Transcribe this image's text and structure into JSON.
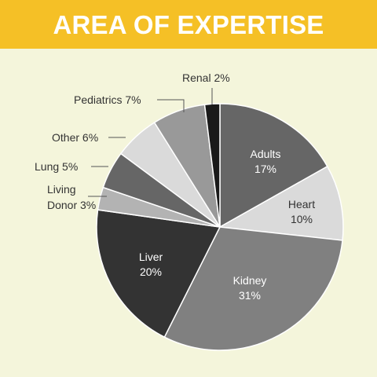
{
  "header": {
    "title": "AREA OF EXPERTISE"
  },
  "colors": {
    "background": "#f4f5db",
    "title_bar": "#f5c026",
    "title_text": "#ffffff"
  },
  "chart_data": {
    "type": "pie",
    "title": "AREA OF EXPERTISE",
    "start_angle_deg": 0,
    "direction": "clockwise",
    "slices": [
      {
        "category": "Adults",
        "value": 17,
        "value_label": "17%",
        "color": "#666666",
        "label_color": "#ffffff",
        "label_position": "inside"
      },
      {
        "category": "Heart",
        "value": 10,
        "value_label": "10%",
        "color": "#dadada",
        "label_color": "#333333",
        "label_position": "inside"
      },
      {
        "category": "Kidney",
        "value": 31,
        "value_label": "31%",
        "color": "#808080",
        "label_color": "#ffffff",
        "label_position": "inside"
      },
      {
        "category": "Liver",
        "value": 20,
        "value_label": "20%",
        "color": "#333333",
        "label_color": "#ffffff",
        "label_position": "inside"
      },
      {
        "category": "Living Donor",
        "value": 3,
        "value_label": "3%",
        "color": "#b3b3b3",
        "label_color": "#333333",
        "label_position": "outside"
      },
      {
        "category": "Lung",
        "value": 5,
        "value_label": "5%",
        "color": "#666666",
        "label_color": "#333333",
        "label_position": "outside"
      },
      {
        "category": "Other",
        "value": 6,
        "value_label": "6%",
        "color": "#dadada",
        "label_color": "#333333",
        "label_position": "outside"
      },
      {
        "category": "Pediatrics",
        "value": 7,
        "value_label": "7%",
        "color": "#999999",
        "label_color": "#333333",
        "label_position": "outside"
      },
      {
        "category": "Renal",
        "value": 2,
        "value_label": "2%",
        "color": "#1a1a1a",
        "label_color": "#333333",
        "label_position": "outside"
      }
    ]
  }
}
